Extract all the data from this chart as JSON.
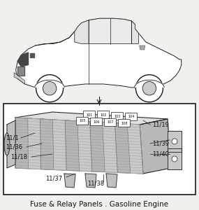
{
  "bg_color": "#f0f0ec",
  "title": "Fuse & Relay Panels . Gasoline Engine",
  "title_fontsize": 7.5,
  "line_color": "#1a1a1a",
  "text_color": "#111111",
  "label_fontsize": 6.0,
  "relay_labels": [
    "101",
    "102",
    "103",
    "104",
    "105",
    "106",
    "107",
    "108"
  ]
}
